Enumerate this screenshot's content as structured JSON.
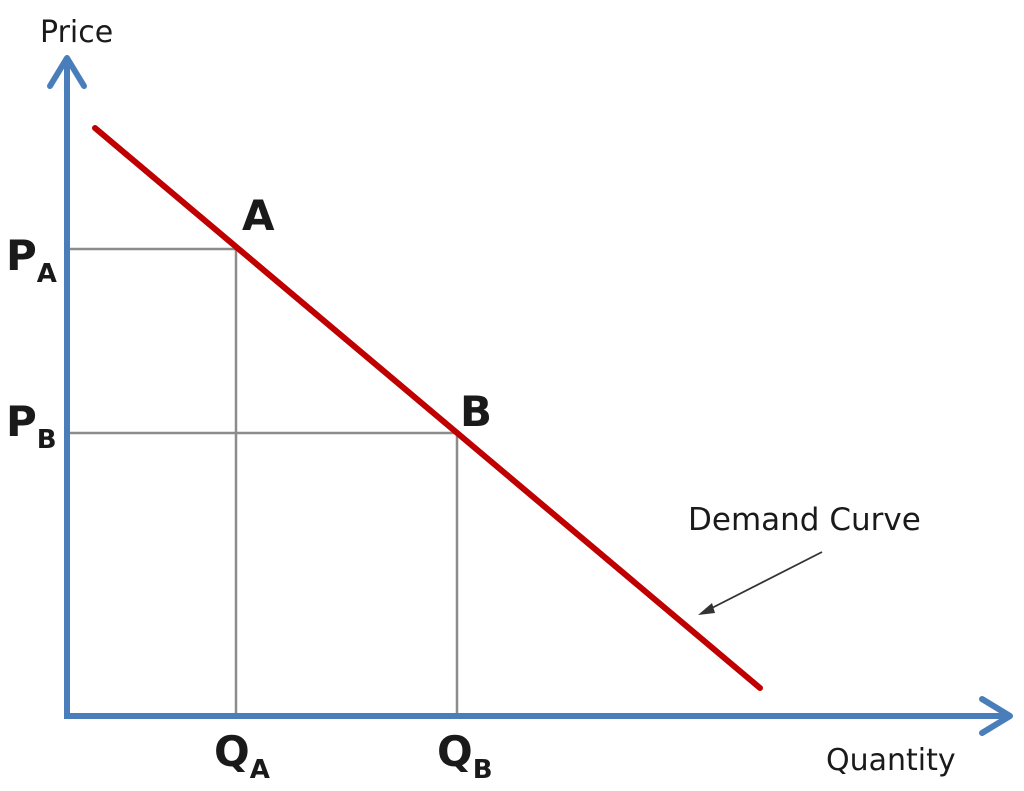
{
  "colors": {
    "axis": "#4a7ebb",
    "curve": "#c00000",
    "guide": "#8c8c8c",
    "text": "#1a1a1a"
  },
  "axes": {
    "y_label": "Price",
    "x_label": "Quantity"
  },
  "price_ticks": [
    {
      "main": "P",
      "sub": "A"
    },
    {
      "main": "P",
      "sub": "B"
    }
  ],
  "quantity_ticks": [
    {
      "main": "Q",
      "sub": "A"
    },
    {
      "main": "Q",
      "sub": "B"
    }
  ],
  "points": [
    {
      "label": "A"
    },
    {
      "label": "B"
    }
  ],
  "curve": {
    "annotation": "Demand Curve"
  }
}
